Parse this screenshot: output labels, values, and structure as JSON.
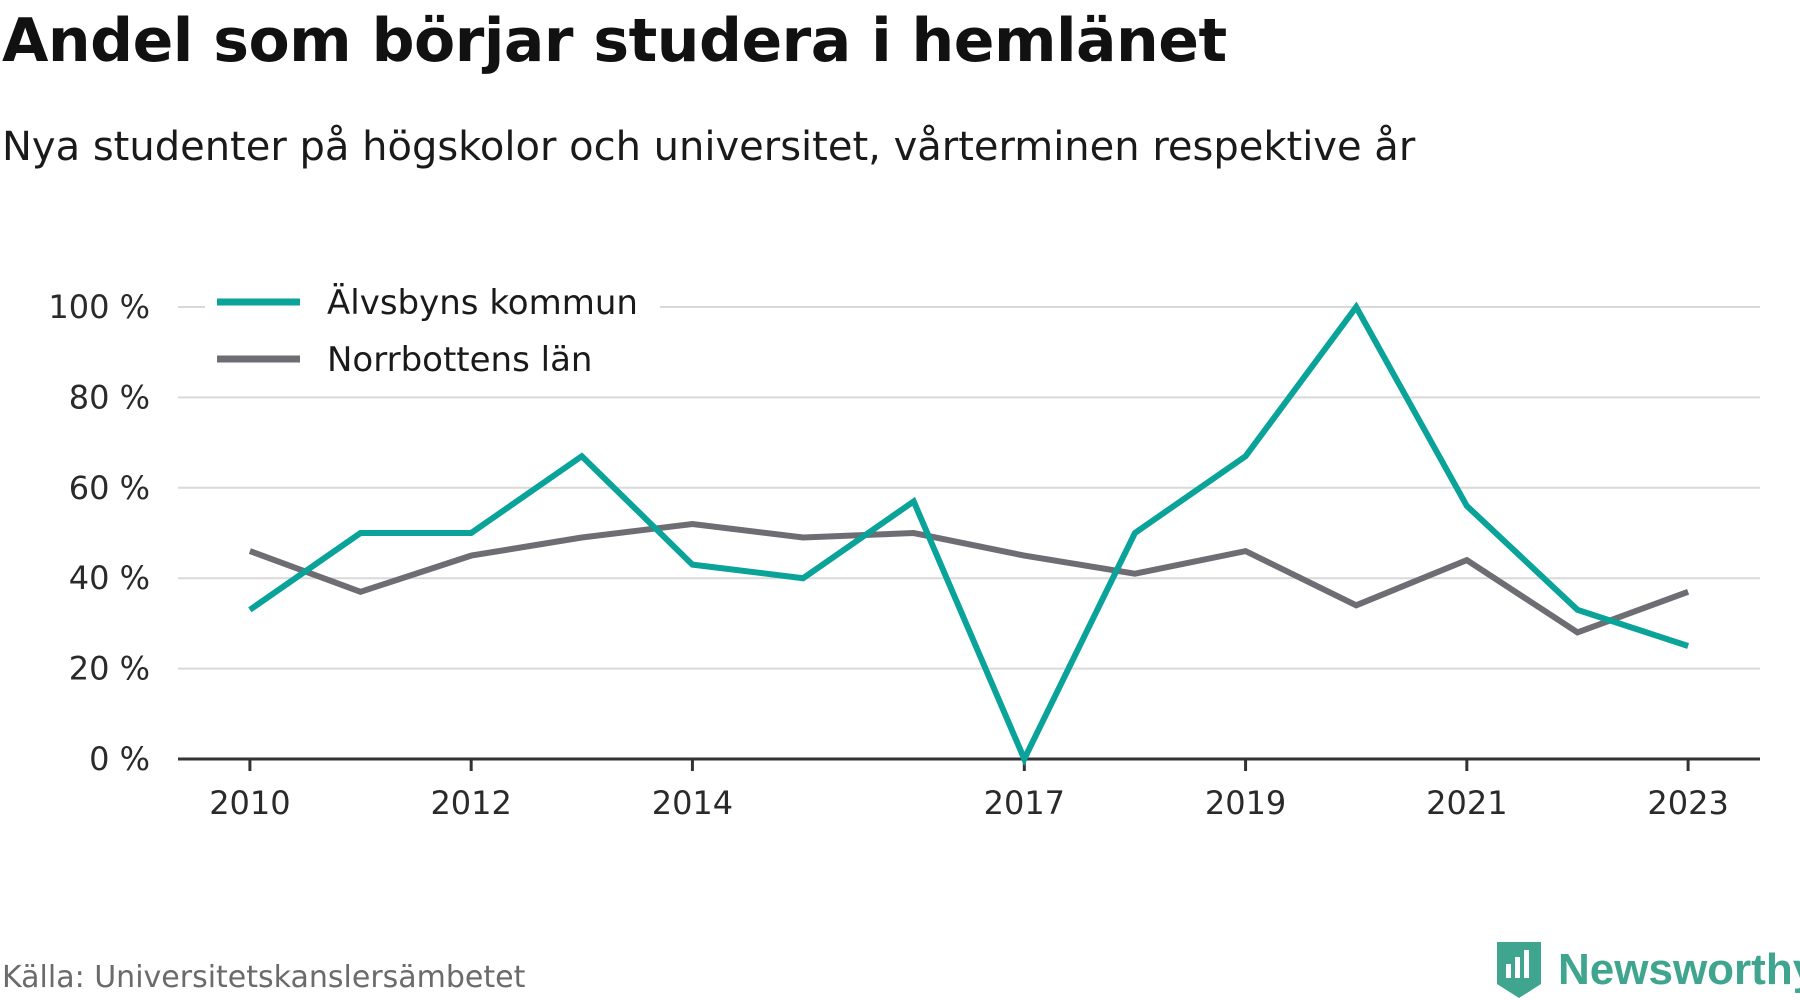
{
  "header": {
    "title": "Andel som börjar studera i hemlänet",
    "subtitle": "Nya studenter på högskolor och universitet, vårterminen respektive år"
  },
  "footer": {
    "source": "Källa: Universitetskanslersämbetet",
    "brand": "Newsworthy",
    "brand_icon": "newsworthy-logo-icon"
  },
  "colors": {
    "alvsbyn": "#0aa39a",
    "norrbotten": "#6e6d73",
    "grid": "#d9d9d9",
    "axis": "#333333",
    "brand": "#3fa58f"
  },
  "chart_data": {
    "type": "line",
    "x": [
      2010,
      2011,
      2012,
      2013,
      2014,
      2015,
      2016,
      2017,
      2018,
      2019,
      2020,
      2021,
      2022,
      2023
    ],
    "x_tick_labels": [
      "2010",
      "2012",
      "2014",
      "2017",
      "2019",
      "2021",
      "2023"
    ],
    "y_tick_labels": [
      "0 %",
      "20 %",
      "40 %",
      "60 %",
      "80 %",
      "100 %"
    ],
    "y_ticks": [
      0,
      20,
      40,
      60,
      80,
      100
    ],
    "ylim": [
      0,
      100
    ],
    "xlim": [
      2009.35,
      2023.65
    ],
    "grid": true,
    "legend_position": "top-left",
    "series": [
      {
        "name": "Älvsbyns kommun",
        "color": "#0aa39a",
        "values": [
          33,
          50,
          50,
          67,
          43,
          40,
          57,
          0,
          50,
          67,
          100,
          56,
          33,
          25
        ]
      },
      {
        "name": "Norrbottens län",
        "color": "#6e6d73",
        "values": [
          46,
          37,
          45,
          49,
          52,
          49,
          50,
          45,
          41,
          46,
          34,
          44,
          28,
          37
        ]
      }
    ]
  }
}
